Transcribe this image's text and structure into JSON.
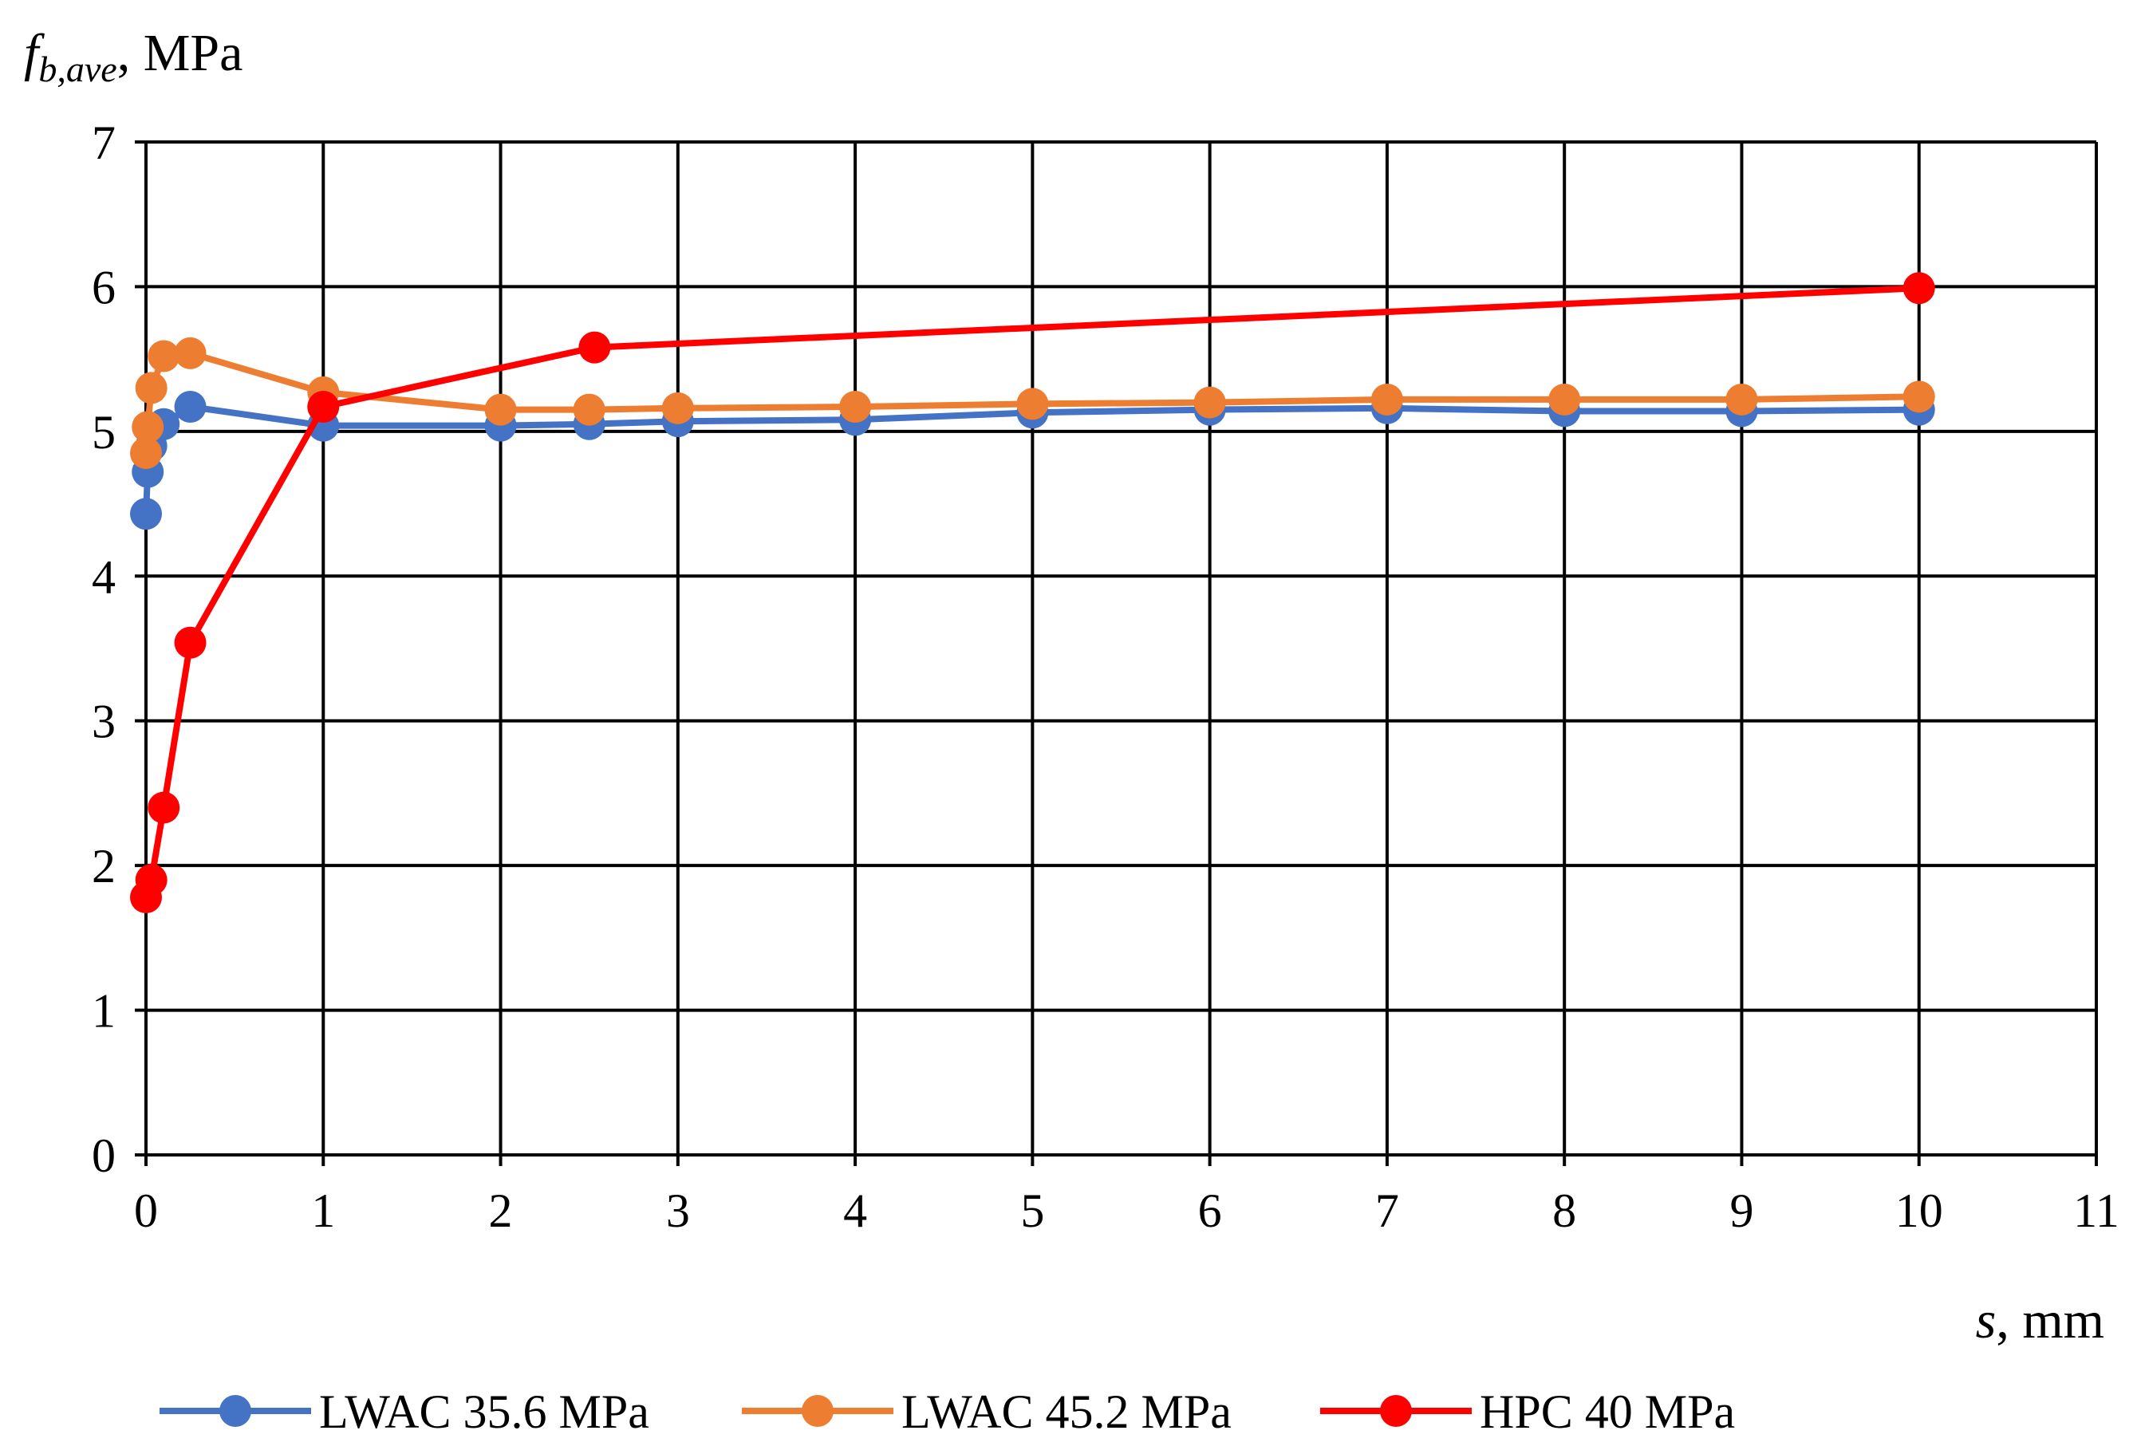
{
  "chart_data": {
    "type": "line",
    "title": "",
    "ylabel": {
      "main": "f",
      "sub": "b,ave",
      "unit": ", MPa"
    },
    "xlabel": {
      "main": "s",
      "unit": ", mm"
    },
    "xlim": [
      0,
      11
    ],
    "ylim": [
      0,
      7
    ],
    "xticks": [
      "0",
      "1",
      "2",
      "3",
      "4",
      "5",
      "6",
      "7",
      "8",
      "9",
      "10",
      "11"
    ],
    "yticks": [
      "0",
      "1",
      "2",
      "3",
      "4",
      "5",
      "6",
      "7"
    ],
    "grid": true,
    "legend_position": "bottom",
    "series": [
      {
        "name": "LWAC 35.6 MPa",
        "color": "#4472C4",
        "points": [
          [
            0,
            4.43
          ],
          [
            0.01,
            4.72
          ],
          [
            0.03,
            4.9
          ],
          [
            0.1,
            5.05
          ],
          [
            0.25,
            5.17
          ],
          [
            1,
            5.04
          ],
          [
            2,
            5.04
          ],
          [
            2.5,
            5.05
          ],
          [
            3,
            5.07
          ],
          [
            4,
            5.08
          ],
          [
            5,
            5.13
          ],
          [
            6,
            5.15
          ],
          [
            7,
            5.16
          ],
          [
            8,
            5.14
          ],
          [
            9,
            5.14
          ],
          [
            10,
            5.15
          ]
        ]
      },
      {
        "name": "LWAC 45.2 MPa",
        "color": "#ED7D31",
        "points": [
          [
            0,
            4.85
          ],
          [
            0.01,
            5.03
          ],
          [
            0.03,
            5.3
          ],
          [
            0.1,
            5.52
          ],
          [
            0.25,
            5.54
          ],
          [
            1,
            5.27
          ],
          [
            2,
            5.15
          ],
          [
            2.5,
            5.15
          ],
          [
            3,
            5.16
          ],
          [
            4,
            5.17
          ],
          [
            5,
            5.19
          ],
          [
            6,
            5.2
          ],
          [
            7,
            5.22
          ],
          [
            8,
            5.22
          ],
          [
            9,
            5.22
          ],
          [
            10,
            5.24
          ]
        ]
      },
      {
        "name": "HPC 40 MPa",
        "color": "#FF0000",
        "points": [
          [
            0,
            1.78
          ],
          [
            0.03,
            1.9
          ],
          [
            0.1,
            2.4
          ],
          [
            0.25,
            3.54
          ],
          [
            1,
            5.17
          ],
          [
            2.53,
            5.58
          ],
          [
            10,
            5.99
          ]
        ]
      }
    ]
  }
}
